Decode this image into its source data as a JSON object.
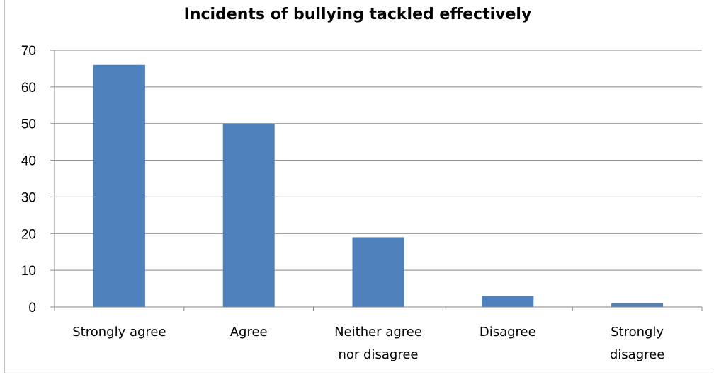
{
  "chart_data": {
    "type": "bar",
    "title": "Incidents of bullying tackled effectively",
    "categories": [
      "Strongly agree",
      "Agree",
      "Neither agree nor disagree",
      "Disagree",
      "Strongly disagree"
    ],
    "category_lines": [
      [
        "Strongly agree"
      ],
      [
        "Agree"
      ],
      [
        "Neither agree",
        "nor disagree"
      ],
      [
        "Disagree"
      ],
      [
        "Strongly",
        "disagree"
      ]
    ],
    "values": [
      66,
      50,
      19,
      3,
      1
    ],
    "ylim": [
      0,
      70
    ],
    "yticks": [
      0,
      10,
      20,
      30,
      40,
      50,
      60,
      70
    ],
    "grid": true,
    "legend": "none",
    "colors": {
      "bar": "#4f81bd",
      "grid": "#868686",
      "axis": "#868686"
    }
  }
}
